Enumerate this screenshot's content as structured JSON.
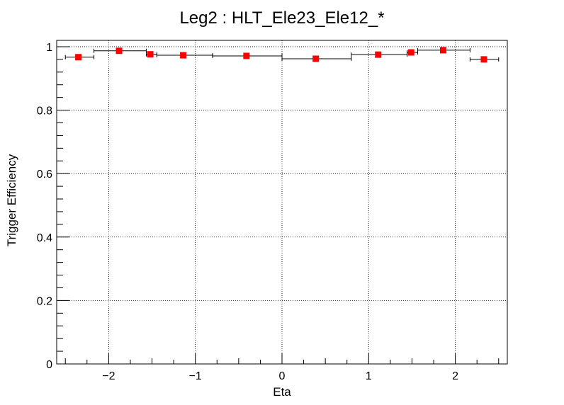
{
  "chart_data": {
    "type": "scatter",
    "title": "Leg2 : HLT_Ele23_Ele12_*",
    "xlabel": "Eta",
    "ylabel": "Trigger Efficiency",
    "xlim": [
      -2.6,
      2.6
    ],
    "ylim": [
      0,
      1.02
    ],
    "xticks": [
      -2,
      -1,
      0,
      1,
      2
    ],
    "xtick_labels": [
      "−2",
      "−1",
      "0",
      "1",
      "2"
    ],
    "yticks": [
      0,
      0.2,
      0.4,
      0.6,
      0.8,
      1
    ],
    "ytick_labels": [
      "0",
      "0.2",
      "0.4",
      "0.6",
      "0.8",
      "1"
    ],
    "grid": true,
    "marker_color": "#ff0000",
    "points": [
      {
        "x": -2.35,
        "y": 0.967,
        "xlo": -2.5,
        "xhi": -2.17
      },
      {
        "x": -1.88,
        "y": 0.987,
        "xlo": -2.17,
        "xhi": -1.566
      },
      {
        "x": -1.52,
        "y": 0.976,
        "xlo": -1.566,
        "xhi": -1.444
      },
      {
        "x": -1.14,
        "y": 0.973,
        "xlo": -1.444,
        "xhi": -0.8
      },
      {
        "x": -0.41,
        "y": 0.971,
        "xlo": -0.8,
        "xhi": 0.0
      },
      {
        "x": 0.39,
        "y": 0.962,
        "xlo": 0.0,
        "xhi": 0.8
      },
      {
        "x": 1.11,
        "y": 0.975,
        "xlo": 0.8,
        "xhi": 1.444
      },
      {
        "x": 1.49,
        "y": 0.982,
        "xlo": 1.444,
        "xhi": 1.566
      },
      {
        "x": 1.86,
        "y": 0.989,
        "xlo": 1.566,
        "xhi": 2.17
      },
      {
        "x": 2.33,
        "y": 0.96,
        "xlo": 2.17,
        "xhi": 2.5
      }
    ]
  }
}
